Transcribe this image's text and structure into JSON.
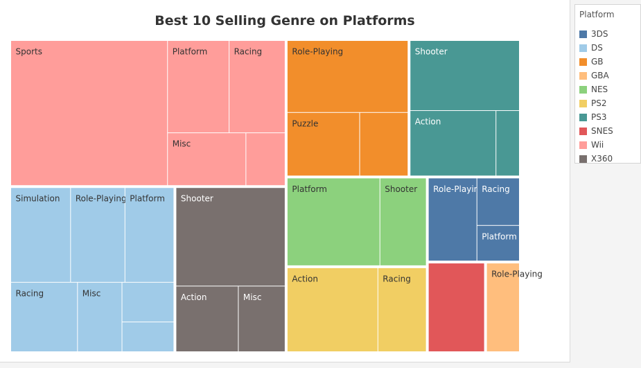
{
  "chart_data": {
    "type": "treemap",
    "title": "Best 10 Selling Genre on Platforms",
    "legend": {
      "title": "Platform",
      "position": "right",
      "items": [
        {
          "name": "3DS",
          "color": "#4e79a7"
        },
        {
          "name": "DS",
          "color": "#a0cbe8"
        },
        {
          "name": "GB",
          "color": "#f28e2b"
        },
        {
          "name": "GBA",
          "color": "#ffbe7d"
        },
        {
          "name": "NES",
          "color": "#8cd17d"
        },
        {
          "name": "PS2",
          "color": "#f1ce63"
        },
        {
          "name": "PS3",
          "color": "#499894"
        },
        {
          "name": "SNES",
          "color": "#e15759"
        },
        {
          "name": "Wii",
          "color": "#ff9d9a"
        },
        {
          "name": "X360",
          "color": "#79706e"
        }
      ]
    },
    "platforms": [
      {
        "name": "Wii",
        "color": "#ff9d9a",
        "cells": [
          {
            "genre": "Sports",
            "value": 44
          },
          {
            "genre": "Platform",
            "value": 11
          },
          {
            "genre": "Racing",
            "value": 10
          },
          {
            "genre": "Misc",
            "value": 8
          },
          {
            "genre": "",
            "value": 4
          }
        ]
      },
      {
        "name": "DS",
        "color": "#a0cbe8",
        "cells": [
          {
            "genre": "Simulation",
            "value": 11
          },
          {
            "genre": "Role-Playing",
            "value": 10
          },
          {
            "genre": "Platform",
            "value": 9
          },
          {
            "genre": "Racing",
            "value": 9
          },
          {
            "genre": "Misc",
            "value": 6
          },
          {
            "genre": "",
            "value": 4
          },
          {
            "genre": "",
            "value": 3
          }
        ]
      },
      {
        "name": "X360",
        "color": "#79706e",
        "cells": [
          {
            "genre": "Shooter",
            "value": 21
          },
          {
            "genre": "Action",
            "value": 8
          },
          {
            "genre": "Misc",
            "value": 6
          }
        ]
      },
      {
        "name": "GB",
        "color": "#f28e2b",
        "cells": [
          {
            "genre": "Role-Playing",
            "value": 17
          },
          {
            "genre": "Puzzle",
            "value": 9
          },
          {
            "genre": "",
            "value": 6
          }
        ]
      },
      {
        "name": "PS3",
        "color": "#499894",
        "cells": [
          {
            "genre": "Shooter",
            "value": 15
          },
          {
            "genre": "Action",
            "value": 11
          },
          {
            "genre": "",
            "value": 3
          }
        ]
      },
      {
        "name": "NES",
        "color": "#8cd17d",
        "cells": [
          {
            "genre": "Platform",
            "value": 16
          },
          {
            "genre": "Shooter",
            "value": 8
          }
        ]
      },
      {
        "name": "PS2",
        "color": "#f1ce63",
        "cells": [
          {
            "genre": "Action",
            "value": 15
          },
          {
            "genre": "Racing",
            "value": 8
          }
        ]
      },
      {
        "name": "3DS",
        "color": "#4e79a7",
        "cells": [
          {
            "genre": "Role-Playing",
            "value": 8
          },
          {
            "genre": "Racing",
            "value": 4
          },
          {
            "genre": "Platform",
            "value": 3
          }
        ]
      },
      {
        "name": "SNES",
        "color": "#e15759",
        "cells": [
          {
            "genre": "",
            "value": 10
          }
        ]
      },
      {
        "name": "GBA",
        "color": "#ffbe7d",
        "cells": [
          {
            "genre": "Role-Playing",
            "value": 6
          }
        ]
      }
    ]
  }
}
